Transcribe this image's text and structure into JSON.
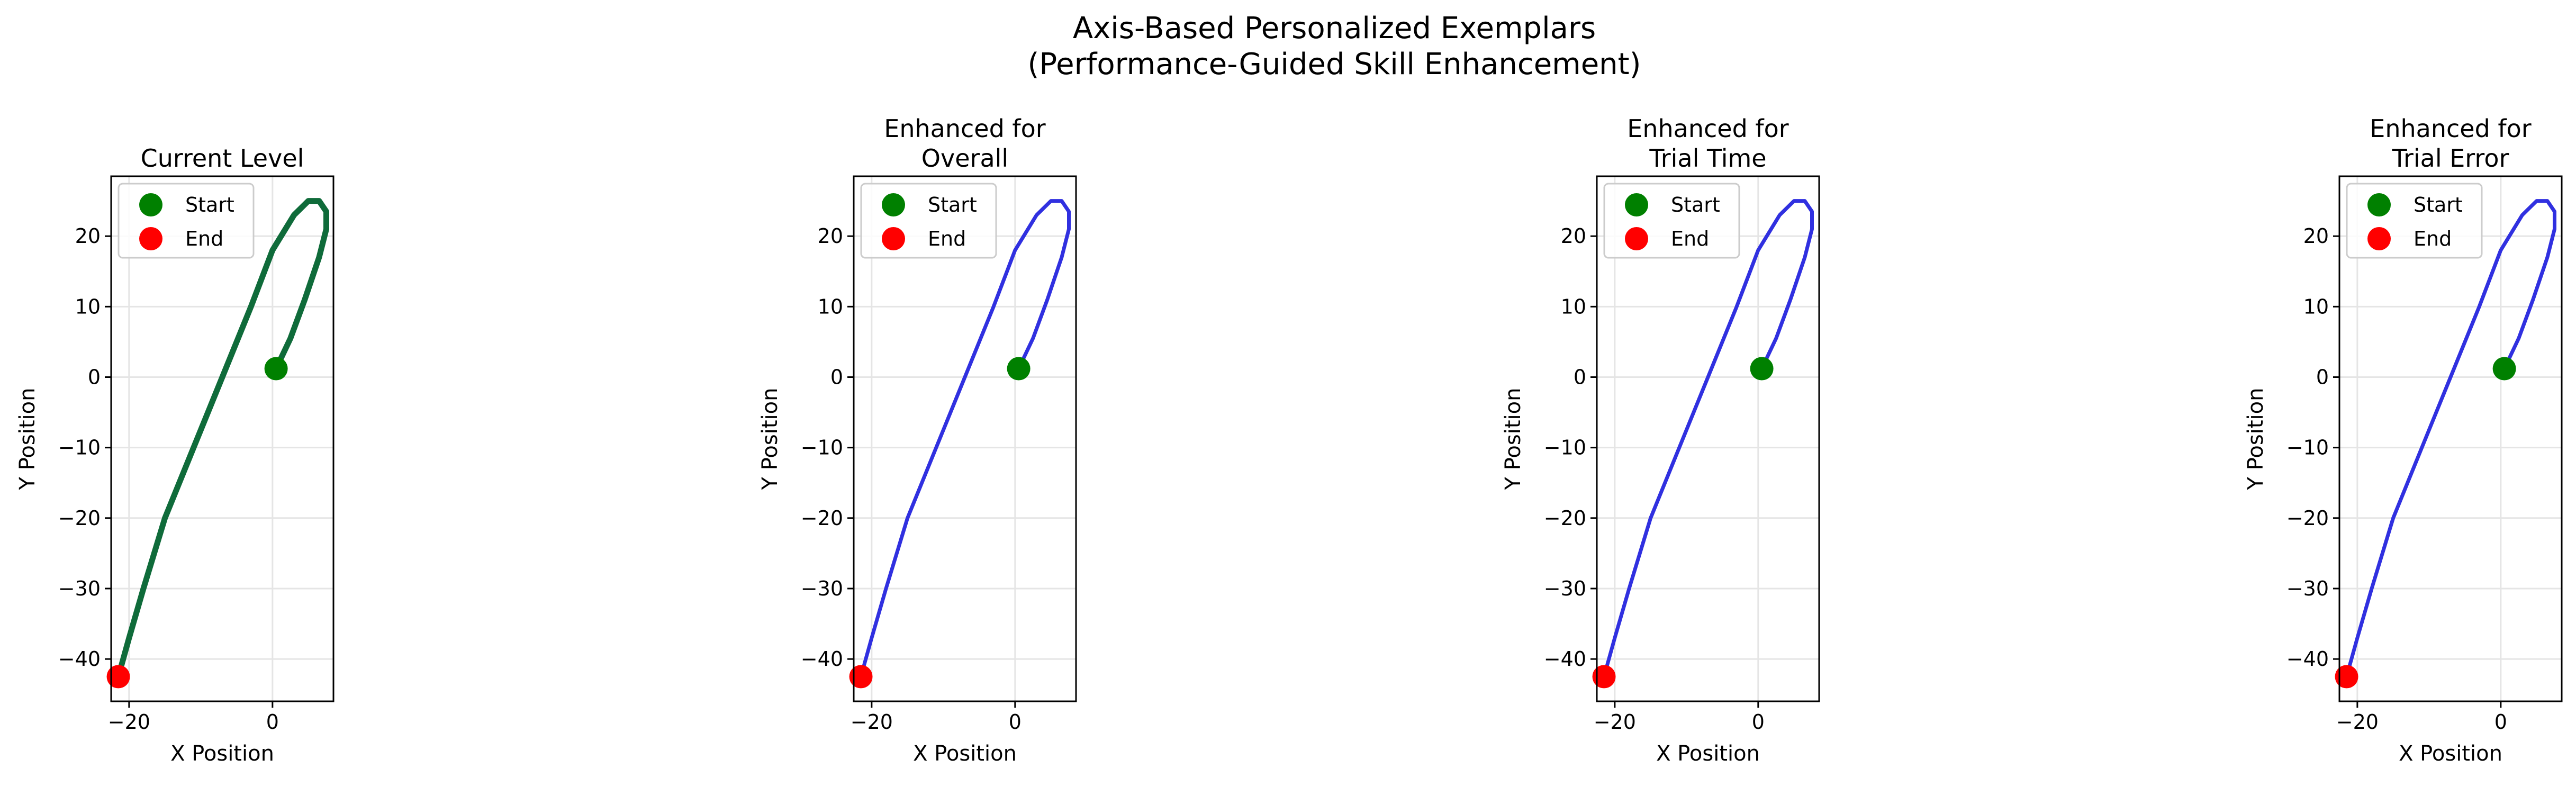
{
  "figure": {
    "title_line1": "Axis-Based Personalized Exemplars",
    "title_line2": "(Performance-Guided Skill Enhancement)"
  },
  "chart_data": [
    {
      "type": "line",
      "title": [
        "Current Level"
      ],
      "xlabel": "X Position",
      "ylabel": "Y Position",
      "xlim": [
        -22.5,
        8.5
      ],
      "ylim": [
        -46,
        28.5
      ],
      "xticks": [
        -20,
        0
      ],
      "yticks": [
        -40,
        -30,
        -20,
        -10,
        0,
        10,
        20
      ],
      "grid": true,
      "legend": {
        "placement": "upper-left",
        "entries": [
          "Start",
          "End"
        ]
      },
      "line_color": "#0f6b3a",
      "start": [
        0.5,
        1.2
      ],
      "end": [
        -21.5,
        -42.5
      ],
      "path": {
        "x": [
          0.5,
          2.5,
          4.5,
          6.5,
          7.5,
          7.5,
          6.5,
          5.0,
          3.0,
          0.0,
          -3.0,
          -7.0,
          -11.0,
          -15.0,
          -18.0,
          -20.0,
          -21.5
        ],
        "y": [
          1.2,
          5.5,
          11.0,
          17.0,
          21.0,
          23.5,
          25.0,
          25.0,
          23.0,
          18.0,
          10.0,
          0.0,
          -10.0,
          -20.0,
          -30.0,
          -37.0,
          -42.5
        ]
      }
    },
    {
      "type": "line",
      "title": [
        "Enhanced for",
        "Overall"
      ],
      "xlabel": "X Position",
      "ylabel": "Y Position",
      "xlim": [
        -22.5,
        8.5
      ],
      "ylim": [
        -46,
        28.5
      ],
      "xticks": [
        -20,
        0
      ],
      "yticks": [
        -40,
        -30,
        -20,
        -10,
        0,
        10,
        20
      ],
      "grid": true,
      "legend": {
        "placement": "upper-left",
        "entries": [
          "Start",
          "End"
        ]
      },
      "line_color": "#3030e0",
      "start": [
        0.5,
        1.2
      ],
      "end": [
        -21.5,
        -42.5
      ],
      "path": {
        "x": [
          0.5,
          2.5,
          4.5,
          6.5,
          7.5,
          7.5,
          6.5,
          5.0,
          3.0,
          0.0,
          -3.0,
          -7.0,
          -11.0,
          -15.0,
          -18.0,
          -20.0,
          -21.5
        ],
        "y": [
          1.2,
          5.5,
          11.0,
          17.0,
          21.0,
          23.5,
          25.0,
          25.0,
          23.0,
          18.0,
          10.0,
          0.0,
          -10.0,
          -20.0,
          -30.0,
          -37.0,
          -42.5
        ]
      }
    },
    {
      "type": "line",
      "title": [
        "Enhanced for",
        "Trial Time"
      ],
      "xlabel": "X Position",
      "ylabel": "Y Position",
      "xlim": [
        -22.5,
        8.5
      ],
      "ylim": [
        -46,
        28.5
      ],
      "xticks": [
        -20,
        0
      ],
      "yticks": [
        -40,
        -30,
        -20,
        -10,
        0,
        10,
        20
      ],
      "grid": true,
      "legend": {
        "placement": "upper-left",
        "entries": [
          "Start",
          "End"
        ]
      },
      "line_color": "#3030e0",
      "start": [
        0.5,
        1.2
      ],
      "end": [
        -21.5,
        -42.5
      ],
      "path": {
        "x": [
          0.5,
          2.5,
          4.5,
          6.5,
          7.5,
          7.5,
          6.5,
          5.0,
          3.0,
          0.0,
          -3.0,
          -7.0,
          -11.0,
          -15.0,
          -18.0,
          -20.0,
          -21.5
        ],
        "y": [
          1.2,
          5.5,
          11.0,
          17.0,
          21.0,
          23.5,
          25.0,
          25.0,
          23.0,
          18.0,
          10.0,
          0.0,
          -10.0,
          -20.0,
          -30.0,
          -37.0,
          -42.5
        ]
      }
    },
    {
      "type": "line",
      "title": [
        "Enhanced for",
        "Trial Error"
      ],
      "xlabel": "X Position",
      "ylabel": "Y Position",
      "xlim": [
        -22.5,
        8.5
      ],
      "ylim": [
        -46,
        28.5
      ],
      "xticks": [
        -20,
        0
      ],
      "yticks": [
        -40,
        -30,
        -20,
        -10,
        0,
        10,
        20
      ],
      "grid": true,
      "legend": {
        "placement": "upper-left",
        "entries": [
          "Start",
          "End"
        ]
      },
      "line_color": "#3030e0",
      "start": [
        0.5,
        1.2
      ],
      "end": [
        -21.5,
        -42.5
      ],
      "path": {
        "x": [
          0.5,
          2.5,
          4.5,
          6.5,
          7.5,
          7.5,
          6.5,
          5.0,
          3.0,
          0.0,
          -3.0,
          -7.0,
          -11.0,
          -15.0,
          -18.0,
          -20.0,
          -21.5
        ],
        "y": [
          1.2,
          5.5,
          11.0,
          17.0,
          21.0,
          23.5,
          25.0,
          25.0,
          23.0,
          18.0,
          10.0,
          0.0,
          -10.0,
          -20.0,
          -30.0,
          -37.0,
          -42.5
        ]
      }
    }
  ],
  "colors": {
    "start_marker": "#008000",
    "end_marker": "#ff0000",
    "grid": "#e5e5e5"
  }
}
